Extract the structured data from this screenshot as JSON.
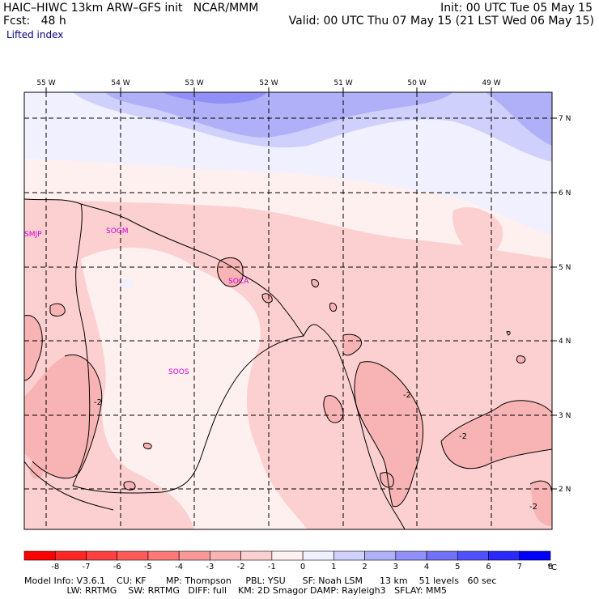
{
  "header": {
    "model_title": "HAIC–HIWC 13km ARW–GFS init   NCAR/MMM",
    "init": "Init: 00 UTC Tue 05 May 15",
    "fcst": "Fcst:   48 h",
    "valid": "Valid: 00 UTC Thu 07 May 15 (21 LST Wed 06 May 15)",
    "field": "Lifted index"
  },
  "map": {
    "lon_labels": [
      "55 W",
      "54 W",
      "53 W",
      "52 W",
      "51 W",
      "50 W",
      "49 W"
    ],
    "lat_labels": [
      "7 N",
      "6 N",
      "5 N",
      "4 N",
      "3 N",
      "2 N"
    ],
    "stations": [
      "SMJP",
      "SOGM",
      "SOCA",
      "SOOS"
    ],
    "contour_labels": [
      "-2",
      "-2",
      "-2",
      "-2"
    ]
  },
  "colorbar": {
    "values": [
      "-8",
      "-7",
      "-6",
      "-5",
      "-4",
      "-3",
      "-2",
      "-1",
      "0",
      "1",
      "2",
      "3",
      "4",
      "5",
      "6",
      "7",
      "8"
    ],
    "unit": "°C",
    "colors": [
      "#ff0000",
      "#ff2626",
      "#ff4040",
      "#ff5a5a",
      "#ff7878",
      "#f89898",
      "#f8b4b4",
      "#fcd0d0",
      "#fff0f0",
      "#f0f0ff",
      "#d0d0fc",
      "#b0b0f8",
      "#9090f8",
      "#7070f8",
      "#5050ff",
      "#2828ff",
      "#0000ff"
    ]
  },
  "footer": {
    "line1": "Model Info: V3.6.1    CU: KF       MP: Thompson     PBL: YSU      SF: Noah LSM      13 km    51 levels   60 sec",
    "line2": "               LW: RRTMG    SW: RRTMG   DIFF: full    KM: 2D Smagor DAMP: Rayleigh3   SFLAY: MM5"
  }
}
